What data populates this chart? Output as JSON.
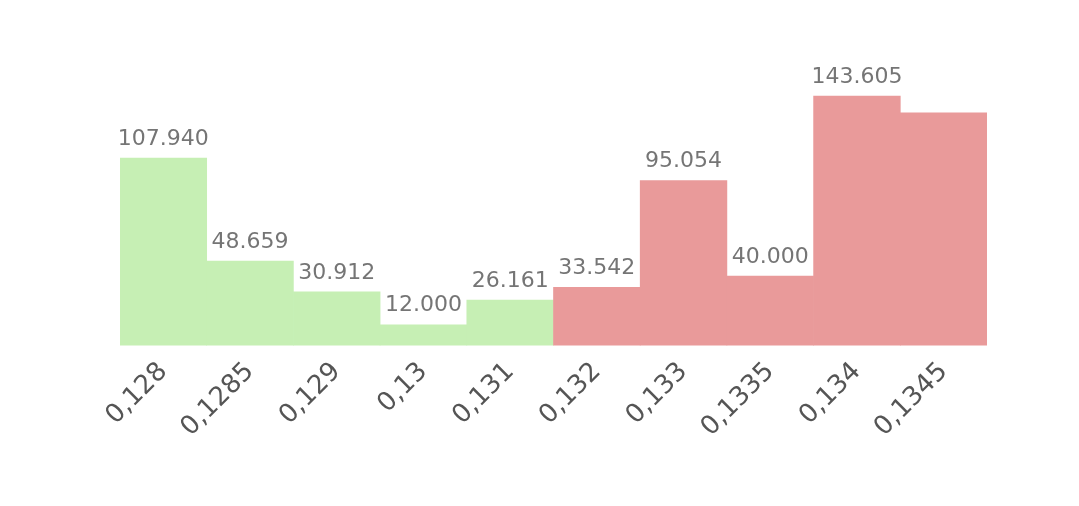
{
  "chart_data": {
    "type": "bar",
    "categories": [
      "0,128",
      "0,1285",
      "0,129",
      "0,13",
      "0,131",
      "0,132",
      "0,133",
      "0,1335",
      "0,134",
      "0,1345"
    ],
    "values": [
      107940,
      48659,
      30912,
      12000,
      26161,
      33542,
      95054,
      40000,
      143605,
      134000
    ],
    "value_labels": [
      "107.940",
      "48.659",
      "30.912",
      "12.000",
      "26.161",
      "33.542",
      "95.054",
      "40.000",
      "143.605",
      null
    ],
    "colors": [
      "#c6efb4",
      "#c6efb4",
      "#c6efb4",
      "#c6efb4",
      "#c6efb4",
      "#e99a9a",
      "#e99a9a",
      "#e99a9a",
      "#e99a9a",
      "#e99a9a"
    ],
    "grid": false,
    "tick_labels": "x",
    "legend": false
  }
}
